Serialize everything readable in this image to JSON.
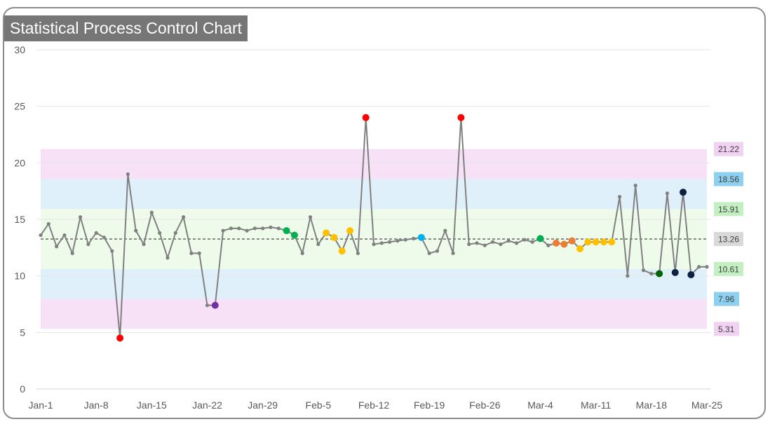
{
  "chart_data": {
    "type": "line",
    "title": "Statistical Process Control Chart",
    "ylim": [
      0,
      30
    ],
    "yticks": [
      0,
      5,
      10,
      15,
      20,
      25,
      30
    ],
    "x_tick_labels": [
      "Jan-1",
      "Jan-8",
      "Jan-15",
      "Jan-22",
      "Jan-29",
      "Feb-5",
      "Feb-12",
      "Feb-19",
      "Feb-26",
      "Mar-4",
      "Mar-11",
      "Mar-18",
      "Mar-25"
    ],
    "x_start_label": "Jan-1",
    "center_line": 13.26,
    "control_limits": [
      {
        "value": "21.22",
        "color": "#f6e1f6",
        "label_bg": "#f2d2f2"
      },
      {
        "value": "18.56",
        "color": "#dff0fa",
        "label_bg": "#8ed0f0"
      },
      {
        "value": "15.91",
        "color": "#eefaea",
        "label_bg": "#c3efc3"
      },
      {
        "value": "13.26",
        "color": "#ffffff",
        "label_bg": "#d9d9d9"
      },
      {
        "value": "10.61",
        "color": "#eefaea",
        "label_bg": "#c3efc3"
      },
      {
        "value": "7.96",
        "color": "#dff0fa",
        "label_bg": "#8ed0f0"
      },
      {
        "value": "5.31",
        "color": "#f6e1f6",
        "label_bg": "#f2d2f2"
      }
    ],
    "series": [
      {
        "values": [
          13.6,
          14.6,
          12.6,
          13.6,
          12.0,
          15.2,
          12.8,
          13.8,
          13.4,
          12.2,
          4.5,
          19.0,
          14.0,
          12.8,
          15.6,
          13.8,
          11.6,
          13.8,
          15.2,
          12.0,
          12.0,
          7.4,
          7.4,
          14.0,
          14.2,
          14.2,
          14.0,
          14.2,
          14.2,
          14.3,
          14.2,
          14.0,
          13.6,
          12.0,
          15.2,
          12.8,
          13.8,
          13.4,
          12.2,
          14.0,
          12.0,
          24.0,
          12.8,
          12.9,
          13.0,
          13.1,
          13.2,
          13.3,
          13.4,
          12.0,
          12.2,
          14.0,
          12.0,
          24.0,
          12.8,
          12.9,
          12.7,
          13.0,
          12.8,
          13.1,
          12.9,
          13.2,
          13.0,
          13.3,
          12.7,
          12.9,
          12.8,
          13.1,
          12.4,
          13.0,
          13.0,
          13.0,
          13.0,
          17.0,
          10.0,
          18.0,
          10.5,
          10.2,
          10.2,
          17.3,
          10.3,
          17.4,
          10.1,
          10.8,
          10.8
        ]
      }
    ],
    "highlights": [
      {
        "index": 10,
        "color": "#ff0000"
      },
      {
        "index": 22,
        "color": "#7030a0"
      },
      {
        "index": 31,
        "color": "#00b050"
      },
      {
        "index": 32,
        "color": "#00b050"
      },
      {
        "index": 36,
        "color": "#ffc000"
      },
      {
        "index": 37,
        "color": "#ffc000"
      },
      {
        "index": 38,
        "color": "#ffc000"
      },
      {
        "index": 39,
        "color": "#ffc000"
      },
      {
        "index": 41,
        "color": "#ff0000"
      },
      {
        "index": 48,
        "color": "#00b0f0"
      },
      {
        "index": 53,
        "color": "#ff0000"
      },
      {
        "index": 63,
        "color": "#00b050"
      },
      {
        "index": 65,
        "color": "#ed7d31"
      },
      {
        "index": 66,
        "color": "#ed7d31"
      },
      {
        "index": 67,
        "color": "#ed7d31"
      },
      {
        "index": 68,
        "color": "#ffc000"
      },
      {
        "index": 69,
        "color": "#ffc000"
      },
      {
        "index": 70,
        "color": "#ffc000"
      },
      {
        "index": 71,
        "color": "#ffc000"
      },
      {
        "index": 72,
        "color": "#ffc000"
      },
      {
        "index": 78,
        "color": "#006400"
      },
      {
        "index": 80,
        "color": "#0d2240"
      },
      {
        "index": 81,
        "color": "#0d2240"
      },
      {
        "index": 82,
        "color": "#0d2240"
      }
    ],
    "line_color": "#808080",
    "grid": true,
    "legend": "none"
  }
}
